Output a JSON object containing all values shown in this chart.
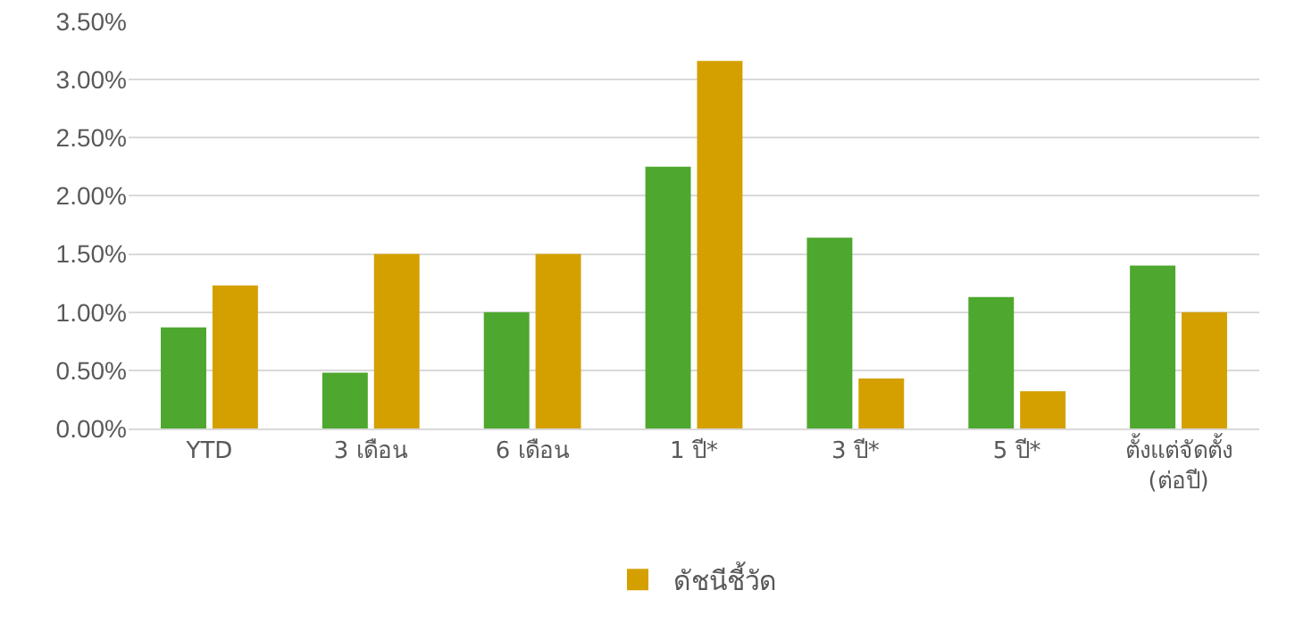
{
  "chart_data": {
    "type": "bar",
    "categories": [
      "YTD",
      "3 เดือน",
      "6 เดือน",
      "1 ปี*",
      "3 ปี*",
      "5 ปี*",
      "ตั้งแต่จัดตั้ง\n(ต่อปี)"
    ],
    "series": [
      {
        "color": "#4ea72e",
        "values": [
          0.87,
          0.48,
          1.0,
          2.25,
          1.64,
          1.13,
          1.4
        ]
      },
      {
        "name": "ดัชนีชี้วัด",
        "color": "#d4a000",
        "values": [
          1.23,
          1.5,
          1.5,
          3.16,
          0.43,
          0.32,
          1.0
        ]
      }
    ],
    "ylim": [
      0,
      3.5
    ],
    "yticks": [
      {
        "value": 0,
        "label": "0.00%"
      },
      {
        "value": 0.5,
        "label": "0.50%"
      },
      {
        "value": 1,
        "label": "1.00%"
      },
      {
        "value": 1.5,
        "label": "1.50%"
      },
      {
        "value": 2,
        "label": "2.00%"
      },
      {
        "value": 2.5,
        "label": "2.50%"
      },
      {
        "value": 3,
        "label": "3.00%"
      },
      {
        "value": 3.5,
        "label": "3.50%"
      }
    ],
    "grid": "y",
    "legend": "bottom"
  }
}
